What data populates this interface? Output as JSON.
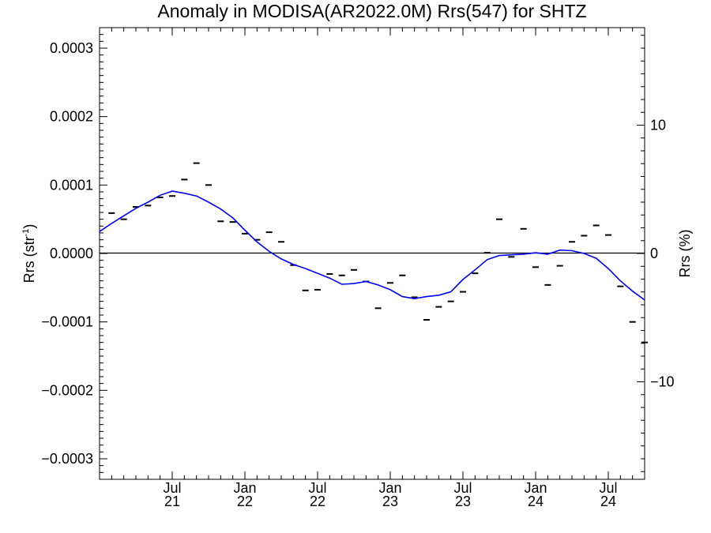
{
  "chart_data": {
    "type": "line",
    "title": "Anomaly in MODISA(AR2022.0M) Rrs(547) for SHTZ",
    "ylabel_left": "Rrs (str",
    "ylabel_left_sup": "-1",
    "ylabel_left_close": ")",
    "ylabel_right": "Rrs (%)",
    "xlim": [
      "2021-01",
      "2024-10"
    ],
    "ylim_left": [
      -0.00033,
      0.00033
    ],
    "ylim_right": [
      -17.6,
      17.6
    ],
    "grid": false,
    "zero_line": true,
    "x_ticks": [
      {
        "date": "2021-07",
        "month": "Jul",
        "year": "21"
      },
      {
        "date": "2022-01",
        "month": "Jan",
        "year": "22"
      },
      {
        "date": "2022-07",
        "month": "Jul",
        "year": "22"
      },
      {
        "date": "2023-01",
        "month": "Jan",
        "year": "23"
      },
      {
        "date": "2023-07",
        "month": "Jul",
        "year": "23"
      },
      {
        "date": "2024-01",
        "month": "Jan",
        "year": "24"
      },
      {
        "date": "2024-07",
        "month": "Jul",
        "year": "24"
      }
    ],
    "y_ticks_left": [
      {
        "value": 0.0003,
        "label": "0.0003"
      },
      {
        "value": 0.0002,
        "label": "0.0002"
      },
      {
        "value": 0.0001,
        "label": "0.0001"
      },
      {
        "value": 0.0,
        "label": "0.0000"
      },
      {
        "value": -0.0001,
        "label": "−0.0001"
      },
      {
        "value": -0.0002,
        "label": "−0.0002"
      },
      {
        "value": -0.0003,
        "label": "−0.0003"
      }
    ],
    "y_ticks_right": [
      {
        "value": 10,
        "label": "10"
      },
      {
        "value": 0,
        "label": "0"
      },
      {
        "value": -10,
        "label": "−10"
      }
    ],
    "series": [
      {
        "kind": "monthly_markers",
        "color": "#000000",
        "points": [
          {
            "x": "2021-02",
            "y": 5.9e-05
          },
          {
            "x": "2021-03",
            "y": 5e-05
          },
          {
            "x": "2021-04",
            "y": 6.8e-05
          },
          {
            "x": "2021-05",
            "y": 7e-05
          },
          {
            "x": "2021-06",
            "y": 8.2e-05
          },
          {
            "x": "2021-07",
            "y": 8.4e-05
          },
          {
            "x": "2021-08",
            "y": 0.000108
          },
          {
            "x": "2021-09",
            "y": 0.000132
          },
          {
            "x": "2021-10",
            "y": 0.0001
          },
          {
            "x": "2021-11",
            "y": 4.7e-05
          },
          {
            "x": "2021-12",
            "y": 4.6e-05
          },
          {
            "x": "2022-01",
            "y": 2.9e-05
          },
          {
            "x": "2022-02",
            "y": 2e-05
          },
          {
            "x": "2022-03",
            "y": 3.1e-05
          },
          {
            "x": "2022-04",
            "y": 1.7e-05
          },
          {
            "x": "2022-05",
            "y": -1.7e-05
          },
          {
            "x": "2022-06",
            "y": -5.4e-05
          },
          {
            "x": "2022-07",
            "y": -5.3e-05
          },
          {
            "x": "2022-08",
            "y": -3e-05
          },
          {
            "x": "2022-09",
            "y": -3.2e-05
          },
          {
            "x": "2022-10",
            "y": -2.4e-05
          },
          {
            "x": "2022-11",
            "y": -4.1e-05
          },
          {
            "x": "2022-12",
            "y": -8e-05
          },
          {
            "x": "2023-01",
            "y": -4.3e-05
          },
          {
            "x": "2023-02",
            "y": -3.2e-05
          },
          {
            "x": "2023-03",
            "y": -6.4e-05
          },
          {
            "x": "2023-04",
            "y": -9.7e-05
          },
          {
            "x": "2023-05",
            "y": -7.8e-05
          },
          {
            "x": "2023-06",
            "y": -7e-05
          },
          {
            "x": "2023-07",
            "y": -5.6e-05
          },
          {
            "x": "2023-08",
            "y": -2.9e-05
          },
          {
            "x": "2023-09",
            "y": 1e-06
          },
          {
            "x": "2023-10",
            "y": 5e-05
          },
          {
            "x": "2023-11",
            "y": -5e-06
          },
          {
            "x": "2023-12",
            "y": 3.6e-05
          },
          {
            "x": "2024-01",
            "y": -2e-05
          },
          {
            "x": "2024-02",
            "y": -4.6e-05
          },
          {
            "x": "2024-03",
            "y": -1.8e-05
          },
          {
            "x": "2024-04",
            "y": 1.7e-05
          },
          {
            "x": "2024-05",
            "y": 2.6e-05
          },
          {
            "x": "2024-06",
            "y": 4.1e-05
          },
          {
            "x": "2024-07",
            "y": 2.7e-05
          },
          {
            "x": "2024-08",
            "y": -4.8e-05
          },
          {
            "x": "2024-09",
            "y": -0.0001
          },
          {
            "x": "2024-10",
            "y": -0.00013
          }
        ]
      },
      {
        "kind": "smoothed_line",
        "color": "#0000ff",
        "points": [
          {
            "x": "2021-01",
            "y": 3.2e-05
          },
          {
            "x": "2021-02",
            "y": 4.4e-05
          },
          {
            "x": "2021-03",
            "y": 5.5e-05
          },
          {
            "x": "2021-04",
            "y": 6.6e-05
          },
          {
            "x": "2021-05",
            "y": 7.5e-05
          },
          {
            "x": "2021-06",
            "y": 8.5e-05
          },
          {
            "x": "2021-07",
            "y": 9.1e-05
          },
          {
            "x": "2021-08",
            "y": 8.8e-05
          },
          {
            "x": "2021-09",
            "y": 8.4e-05
          },
          {
            "x": "2021-10",
            "y": 7.5e-05
          },
          {
            "x": "2021-11",
            "y": 6.5e-05
          },
          {
            "x": "2021-12",
            "y": 5.2e-05
          },
          {
            "x": "2022-01",
            "y": 3.4e-05
          },
          {
            "x": "2022-02",
            "y": 1.7e-05
          },
          {
            "x": "2022-03",
            "y": 3e-06
          },
          {
            "x": "2022-04",
            "y": -8e-06
          },
          {
            "x": "2022-05",
            "y": -1.6e-05
          },
          {
            "x": "2022-06",
            "y": -2.2e-05
          },
          {
            "x": "2022-07",
            "y": -2.9e-05
          },
          {
            "x": "2022-08",
            "y": -3.6e-05
          },
          {
            "x": "2022-09",
            "y": -4.5e-05
          },
          {
            "x": "2022-10",
            "y": -4.4e-05
          },
          {
            "x": "2022-11",
            "y": -4.1e-05
          },
          {
            "x": "2022-12",
            "y": -4.6e-05
          },
          {
            "x": "2023-01",
            "y": -5.3e-05
          },
          {
            "x": "2023-02",
            "y": -6.3e-05
          },
          {
            "x": "2023-03",
            "y": -6.6e-05
          },
          {
            "x": "2023-04",
            "y": -6.3e-05
          },
          {
            "x": "2023-05",
            "y": -6.1e-05
          },
          {
            "x": "2023-06",
            "y": -5.6e-05
          },
          {
            "x": "2023-07",
            "y": -3.8e-05
          },
          {
            "x": "2023-08",
            "y": -2.4e-05
          },
          {
            "x": "2023-09",
            "y": -9e-06
          },
          {
            "x": "2023-10",
            "y": -3e-06
          },
          {
            "x": "2023-11",
            "y": -2e-06
          },
          {
            "x": "2023-12",
            "y": -1e-06
          },
          {
            "x": "2024-01",
            "y": 1e-06
          },
          {
            "x": "2024-02",
            "y": -1e-06
          },
          {
            "x": "2024-03",
            "y": 5e-06
          },
          {
            "x": "2024-04",
            "y": 4e-06
          },
          {
            "x": "2024-05",
            "y": 0.0
          },
          {
            "x": "2024-06",
            "y": -7e-06
          },
          {
            "x": "2024-07",
            "y": -2.2e-05
          },
          {
            "x": "2024-08",
            "y": -4e-05
          },
          {
            "x": "2024-09",
            "y": -5.5e-05
          },
          {
            "x": "2024-10",
            "y": -6.8e-05
          }
        ]
      }
    ]
  }
}
